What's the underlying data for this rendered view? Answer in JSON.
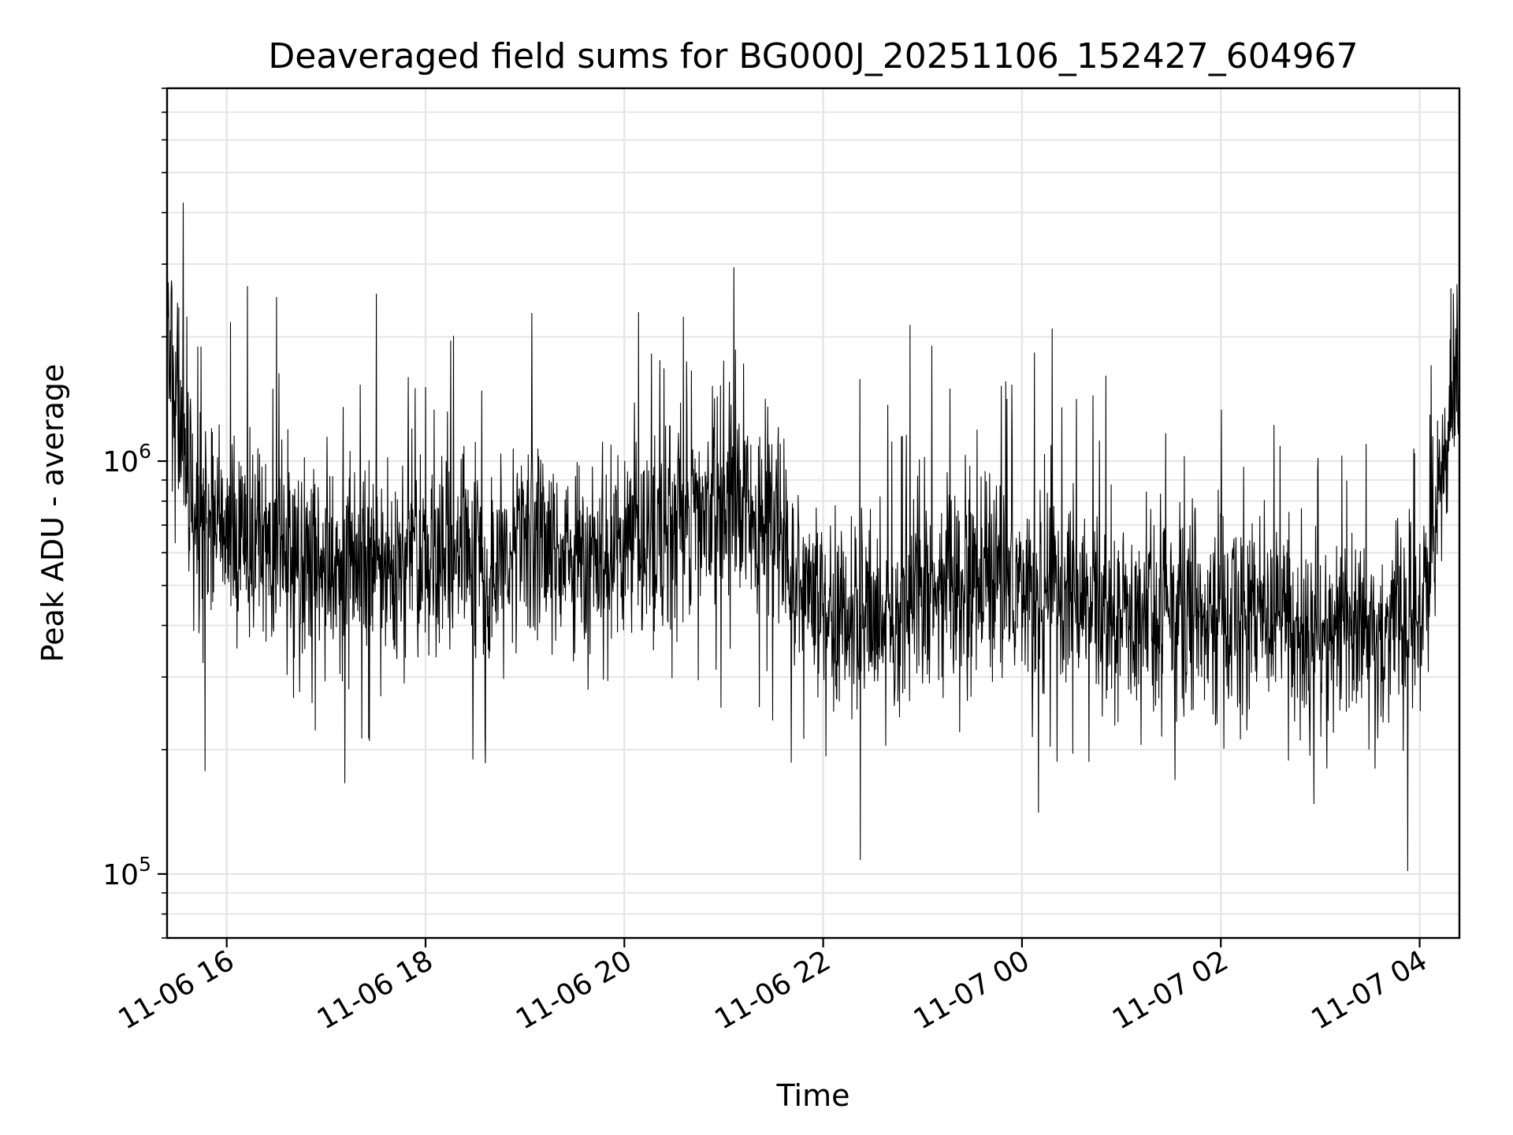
{
  "chart_data": {
    "type": "line",
    "title": "Deaveraged field sums for BG000J_20251106_152427_604967",
    "xlabel": "Time",
    "ylabel": "Peak ADU - average",
    "yscale": "log",
    "xlim": [
      "2025-11-06 15:24",
      "2025-11-07 04:24"
    ],
    "ylim": [
      70000,
      8000000
    ],
    "x_ticks": [
      {
        "value": "2025-11-06 16:00",
        "label": "11-06 16"
      },
      {
        "value": "2025-11-06 18:00",
        "label": "11-06 18"
      },
      {
        "value": "2025-11-06 20:00",
        "label": "11-06 20"
      },
      {
        "value": "2025-11-06 22:00",
        "label": "11-06 22"
      },
      {
        "value": "2025-11-07 00:00",
        "label": "11-07 00"
      },
      {
        "value": "2025-11-07 02:00",
        "label": "11-07 02"
      },
      {
        "value": "2025-11-07 04:00",
        "label": "11-07 04"
      }
    ],
    "y_ticks": [
      {
        "value": 100000,
        "base": "10",
        "exp": "5"
      },
      {
        "value": 1000000,
        "base": "10",
        "exp": "6"
      }
    ],
    "grid": "both major and minor",
    "line_color": "#000000",
    "series": [
      {
        "x": [
          "2025-11-06 15:24",
          "2025-11-06 15:36",
          "2025-11-06 16:00",
          "2025-11-06 16:30",
          "2025-11-06 17:00",
          "2025-11-06 17:30",
          "2025-11-06 18:00",
          "2025-11-06 18:30",
          "2025-11-06 19:00",
          "2025-11-06 19:30",
          "2025-11-06 20:00",
          "2025-11-06 20:30",
          "2025-11-06 21:00",
          "2025-11-06 21:30",
          "2025-11-06 22:00",
          "2025-11-06 22:30",
          "2025-11-06 23:00",
          "2025-11-06 23:30",
          "2025-11-07 00:00",
          "2025-11-07 00:30",
          "2025-11-07 01:00",
          "2025-11-07 01:30",
          "2025-11-07 02:00",
          "2025-11-07 02:30",
          "2025-11-07 03:00",
          "2025-11-07 03:30",
          "2025-11-07 04:00",
          "2025-11-07 04:24"
        ],
        "y": [
          2200000,
          800000,
          650000,
          600000,
          560000,
          580000,
          600000,
          560000,
          620000,
          580000,
          620000,
          700000,
          820000,
          700000,
          450000,
          380000,
          480000,
          520000,
          480000,
          450000,
          400000,
          420000,
          420000,
          420000,
          390000,
          400000,
          420000,
          1800000
        ]
      }
    ]
  }
}
